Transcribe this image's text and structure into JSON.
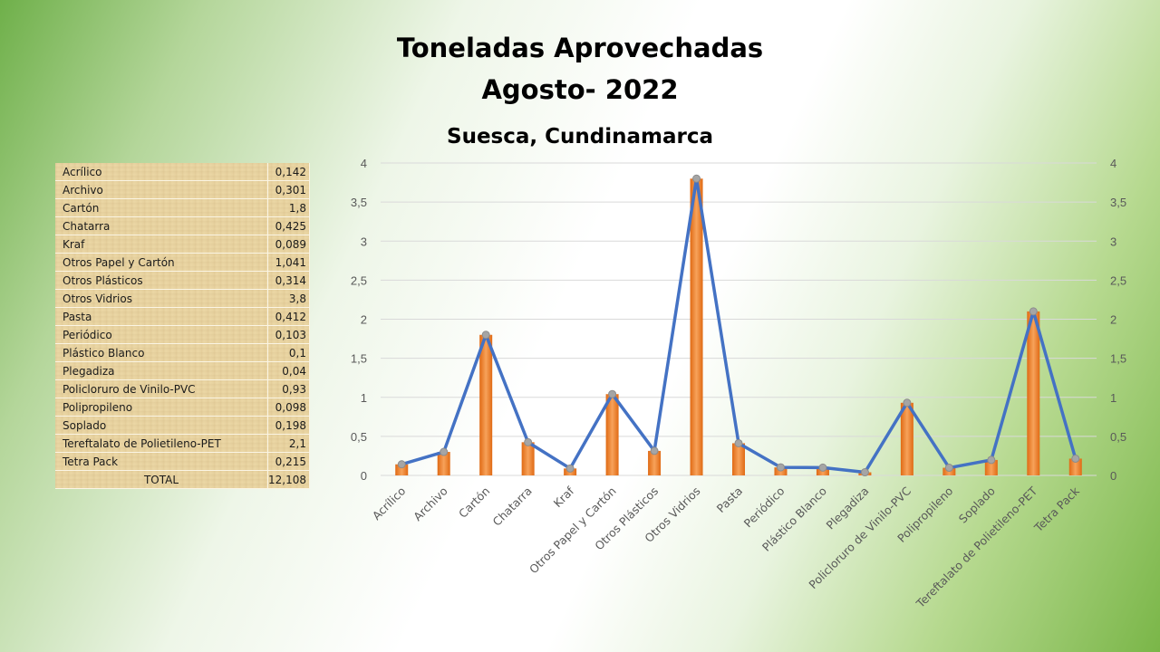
{
  "title": {
    "line1": "Toneladas Aprovechadas",
    "line2": "Agosto- 2022",
    "subtitle": "Suesca, Cundinamarca"
  },
  "table": {
    "rows": [
      {
        "name": "Acrílico",
        "value": "0,142"
      },
      {
        "name": "Archivo",
        "value": "0,301"
      },
      {
        "name": "Cartón",
        "value": "1,8"
      },
      {
        "name": "Chatarra",
        "value": "0,425"
      },
      {
        "name": "Kraf",
        "value": "0,089"
      },
      {
        "name": "Otros Papel y Cartón",
        "value": "1,041"
      },
      {
        "name": "Otros Plásticos",
        "value": "0,314"
      },
      {
        "name": "Otros Vidrios",
        "value": "3,8"
      },
      {
        "name": "Pasta",
        "value": "0,412"
      },
      {
        "name": "Periódico",
        "value": "0,103"
      },
      {
        "name": "Plástico Blanco",
        "value": "0,1"
      },
      {
        "name": "Plegadiza",
        "value": "0,04"
      },
      {
        "name": "Policloruro de Vinilo-PVC",
        "value": "0,93"
      },
      {
        "name": "Polipropileno",
        "value": "0,098"
      },
      {
        "name": "Soplado",
        "value": "0,198"
      },
      {
        "name": "Tereftalato de Polietileno-PET",
        "value": "2,1"
      },
      {
        "name": "Tetra Pack",
        "value": "0,215"
      }
    ],
    "total_label": "TOTAL",
    "total_value": "12,108"
  },
  "chart_data": {
    "type": "bar",
    "overlay": "line",
    "categories": [
      "Acrílico",
      "Archivo",
      "Cartón",
      "Chatarra",
      "Kraf",
      "Otros Papel y Cartón",
      "Otros Plásticos",
      "Otros Vidrios",
      "Pasta",
      "Periódico",
      "Plástico Blanco",
      "Plegadiza",
      "Policloruro de Vinilo-PVC",
      "Polipropileno",
      "Soplado",
      "Tereftalato de Polietileno-PET",
      "Tetra Pack"
    ],
    "values": [
      0.142,
      0.301,
      1.8,
      0.425,
      0.089,
      1.041,
      0.314,
      3.8,
      0.412,
      0.103,
      0.1,
      0.04,
      0.93,
      0.098,
      0.198,
      2.1,
      0.215
    ],
    "ylim": [
      0,
      4
    ],
    "yticks": [
      0,
      0.5,
      1,
      1.5,
      2,
      2.5,
      3,
      3.5,
      4
    ],
    "ytick_labels": [
      "0",
      "0,5",
      "1",
      "1,5",
      "2",
      "2,5",
      "3",
      "3,5",
      "4"
    ],
    "secondary_axis": true,
    "grid": true,
    "colors": {
      "bar_light": "#f7a25a",
      "bar_dark": "#e06a14",
      "line": "#4472c4",
      "marker": "#a5a5a5",
      "grid": "#d9d9d9",
      "tick_text": "#595959"
    }
  }
}
